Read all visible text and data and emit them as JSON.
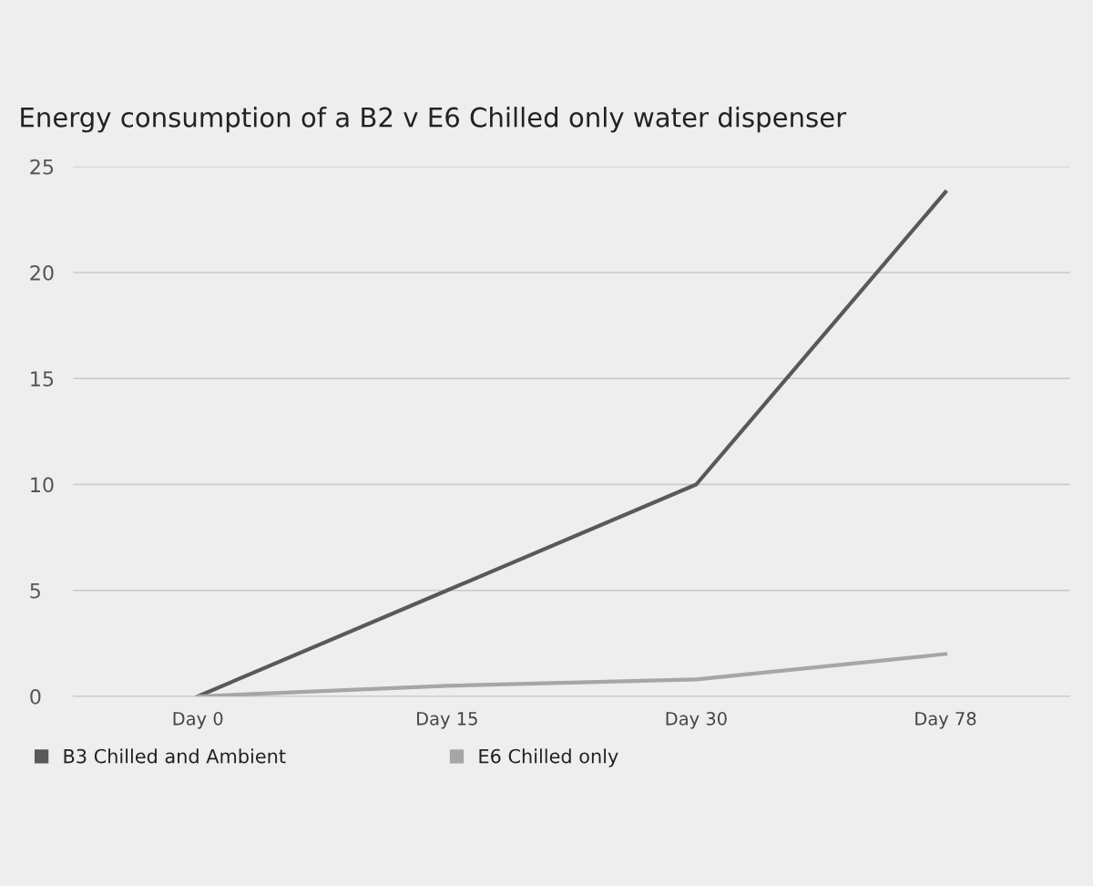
{
  "chart_data": {
    "type": "line",
    "title": "Energy consumption of a B2 v E6 Chilled only water dispenser",
    "categories": [
      "Day 0",
      "Day 15",
      "Day 30",
      "Day 78"
    ],
    "series": [
      {
        "name": "B3 Chilled and Ambient",
        "color": "#595959",
        "values": [
          0,
          5,
          10,
          23.8
        ]
      },
      {
        "name": "E6 Chilled only",
        "color": "#a6a6a6",
        "values": [
          0,
          0.5,
          0.8,
          2.0
        ]
      }
    ],
    "ylim": [
      0,
      25
    ],
    "yticks": [
      0,
      5,
      10,
      15,
      20,
      25
    ],
    "grid": "y",
    "legend": "bottom left"
  }
}
